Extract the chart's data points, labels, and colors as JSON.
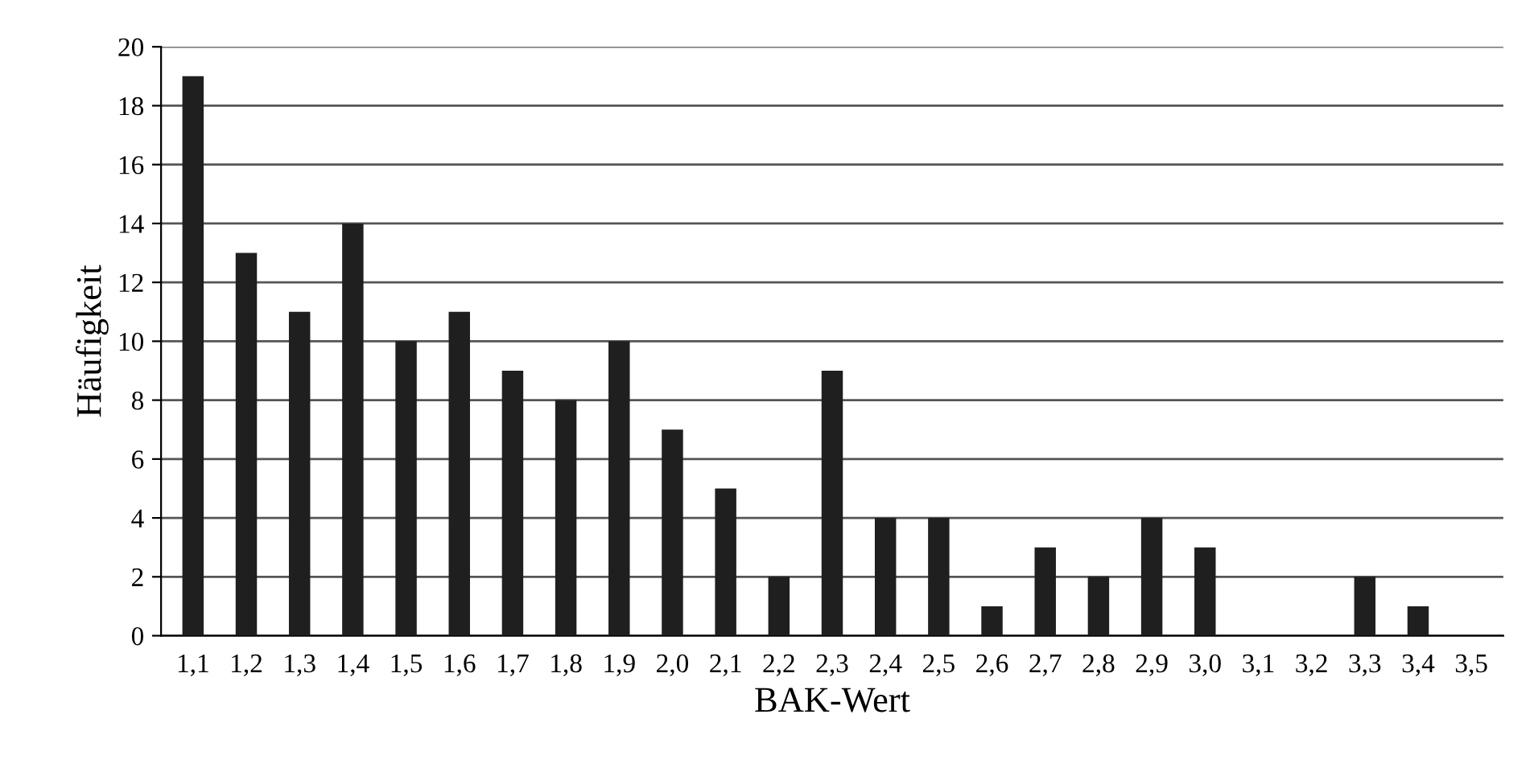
{
  "chart_data": {
    "type": "bar",
    "xlabel": "BAK-Wert",
    "ylabel": "Häufigkeit",
    "categories": [
      "1,1",
      "1,2",
      "1,3",
      "1,4",
      "1,5",
      "1,6",
      "1,7",
      "1,8",
      "1,9",
      "2,0",
      "2,1",
      "2,2",
      "2,3",
      "2,4",
      "2,5",
      "2,6",
      "2,7",
      "2,8",
      "2,9",
      "3,0",
      "3,1",
      "3,2",
      "3,3",
      "3,4",
      "3,5"
    ],
    "values": [
      19,
      13,
      11,
      14,
      10,
      11,
      9,
      8,
      10,
      7,
      5,
      2,
      9,
      4,
      4,
      1,
      3,
      2,
      4,
      3,
      0,
      0,
      2,
      1,
      0
    ],
    "color": "#1f1f1f",
    "ylim": [
      0,
      20
    ],
    "yticks": [
      0,
      2,
      4,
      6,
      8,
      10,
      12,
      14,
      16,
      18,
      20
    ],
    "grid": "y",
    "legend": false
  }
}
